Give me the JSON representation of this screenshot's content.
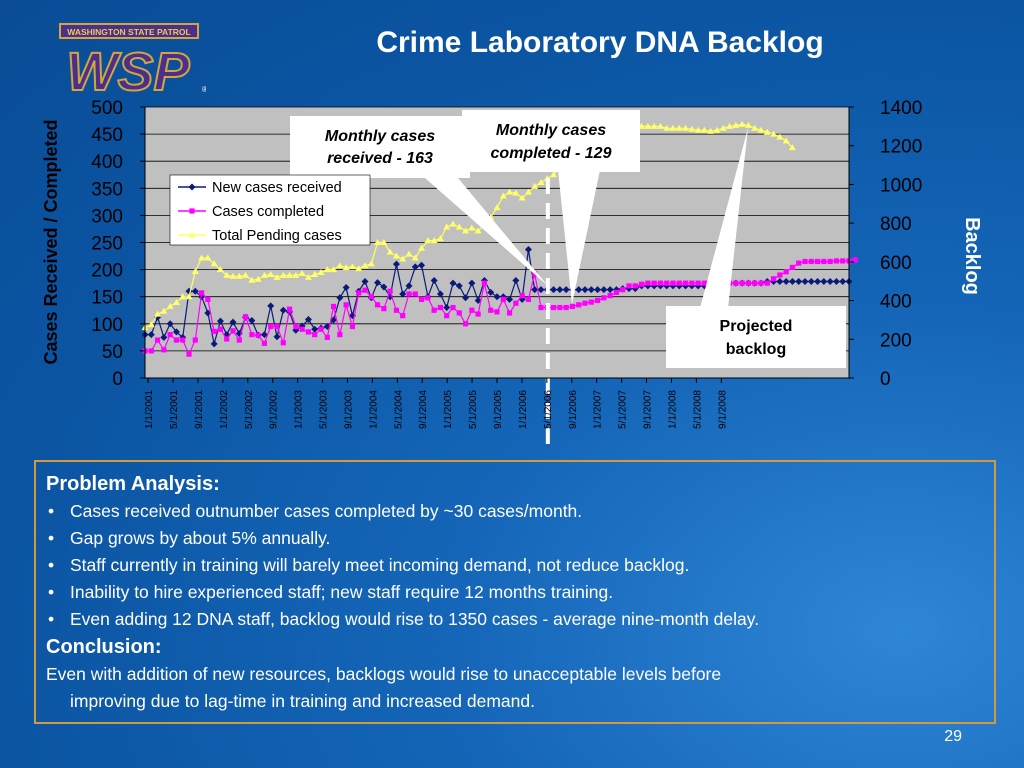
{
  "slide": {
    "logo_text": "WASHINGTON STATE PATROL",
    "logo_mark": "WSP",
    "title": "Crime Laboratory DNA Backlog",
    "page_number": "29"
  },
  "callouts": {
    "received": [
      "Monthly cases",
      "received - 163"
    ],
    "completed": [
      "Monthly cases",
      "completed - 129"
    ],
    "projected": [
      "Projected",
      "backlog"
    ]
  },
  "problem": {
    "heading": "Problem Analysis:",
    "bullets": [
      "Cases received outnumber cases completed by ~30 cases/month.",
      "Gap grows by about 5% annually.",
      "Staff currently in training will barely meet incoming demand, not reduce backlog.",
      "Inability to hire experienced staff; new staff require 12 months training.",
      "Even adding 12 DNA staff, backlog would rise to 1350 cases - average nine-month delay."
    ],
    "conclusion_heading": "Conclusion:",
    "conclusion_line1": "Even with addition of new resources, backlogs would rise to unacceptable levels before",
    "conclusion_line2": "improving due to lag-time in training and increased demand."
  },
  "colors": {
    "received": "#0a1a7a",
    "completed": "#ff00ff",
    "pending": "#ffff66",
    "plot_bg": "#c0c0c0",
    "box_border": "#d29a3a"
  },
  "chart_data": {
    "type": "line",
    "x_start": "1/1/2001",
    "x_ticks": [
      "1/1/2001",
      "5/1/2001",
      "9/1/2001",
      "1/1/2002",
      "5/1/2002",
      "9/1/2002",
      "1/1/2003",
      "5/1/2003",
      "9/1/2003",
      "1/1/2004",
      "5/1/2004",
      "9/1/2004",
      "1/1/2005",
      "5/1/2005",
      "9/1/2005",
      "1/1/2006",
      "5/1/2006",
      "9/1/2006",
      "1/1/2007",
      "5/1/2007",
      "9/1/2007",
      "1/1/2008",
      "5/1/2008",
      "9/1/2008"
    ],
    "ylabel": "Cases Received / Completed",
    "y2label": "Backlog",
    "ylim": [
      0,
      500
    ],
    "y_ticks": [
      0,
      50,
      100,
      150,
      200,
      250,
      300,
      350,
      400,
      450,
      500
    ],
    "y2lim": [
      0,
      1400
    ],
    "y2_ticks": [
      0,
      200,
      400,
      600,
      800,
      1000,
      1200,
      1400
    ],
    "legend_position": "upper-left",
    "projection_start": "5/1/2006",
    "series": [
      {
        "name": "New cases received",
        "axis": "left",
        "marker": "diamond",
        "values": [
          80,
          80,
          112,
          75,
          100,
          85,
          75,
          160,
          160,
          150,
          120,
          63,
          105,
          80,
          103,
          82,
          112,
          106,
          79,
          80,
          133,
          76,
          125,
          122,
          88,
          96,
          108,
          90,
          92,
          95,
          107,
          148,
          167,
          115,
          160,
          178,
          148,
          176,
          168,
          150,
          210,
          155,
          170,
          205,
          208,
          150,
          180,
          155,
          130,
          175,
          170,
          148,
          175,
          143,
          180,
          158,
          150,
          150,
          145,
          180,
          145,
          237,
          163,
          163,
          163,
          163,
          163,
          163,
          163,
          163,
          163,
          163,
          163,
          163,
          163,
          163,
          165,
          165,
          165,
          170,
          170,
          170,
          170,
          170,
          170,
          170,
          170,
          170,
          170,
          170,
          170,
          170,
          175,
          175,
          175,
          175,
          175,
          175,
          175,
          178,
          178,
          178,
          178,
          178,
          178,
          178,
          178,
          178,
          178,
          178,
          178,
          178,
          178
        ]
      },
      {
        "name": "Cases completed",
        "axis": "left",
        "marker": "square",
        "values": [
          50,
          50,
          70,
          52,
          80,
          70,
          70,
          44,
          70,
          157,
          145,
          86,
          90,
          72,
          87,
          70,
          113,
          80,
          79,
          64,
          95,
          95,
          65,
          127,
          95,
          90,
          85,
          80,
          90,
          75,
          132,
          80,
          135,
          95,
          157,
          162,
          150,
          135,
          128,
          160,
          125,
          115,
          155,
          155,
          145,
          148,
          125,
          130,
          115,
          130,
          120,
          100,
          125,
          118,
          175,
          125,
          122,
          145,
          120,
          138,
          152,
          145,
          192,
          130,
          130,
          130,
          130,
          130,
          132,
          135,
          138,
          140,
          143,
          148,
          152,
          158,
          163,
          170,
          170,
          173,
          175,
          175,
          175,
          175,
          175,
          175,
          175,
          175,
          175,
          175,
          175,
          175,
          175,
          175,
          175,
          175,
          175,
          175,
          175,
          175,
          183,
          190,
          196,
          204,
          212,
          215,
          215,
          215,
          215,
          215,
          216,
          216,
          216,
          218
        ]
      },
      {
        "name": "Total Pending cases",
        "axis": "right",
        "marker": "triangle",
        "values": [
          260,
          275,
          330,
          345,
          370,
          390,
          420,
          420,
          550,
          620,
          620,
          590,
          560,
          530,
          525,
          525,
          530,
          505,
          510,
          530,
          535,
          520,
          530,
          530,
          530,
          540,
          520,
          535,
          545,
          560,
          560,
          580,
          570,
          575,
          565,
          580,
          590,
          700,
          700,
          650,
          630,
          615,
          640,
          620,
          670,
          710,
          710,
          720,
          780,
          795,
          780,
          760,
          775,
          760,
          790,
          830,
          880,
          940,
          960,
          955,
          930,
          960,
          990,
          1010,
          1030,
          1050,
          1090,
          1120,
          1140,
          1160,
          1190,
          1215,
          1240,
          1265,
          1280,
          1295,
          1300,
          1300,
          1300,
          1300,
          1300,
          1300,
          1300,
          1290,
          1290,
          1290,
          1290,
          1285,
          1280,
          1280,
          1275,
          1280,
          1290,
          1300,
          1305,
          1310,
          1305,
          1290,
          1280,
          1270,
          1260,
          1245,
          1225,
          1190
        ]
      }
    ]
  }
}
